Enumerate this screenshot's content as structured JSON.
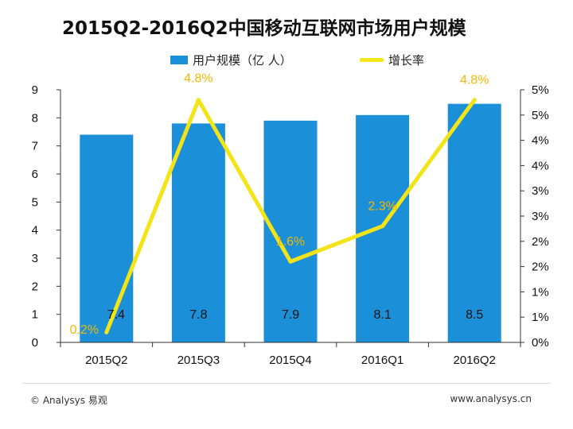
{
  "colors": {
    "bar": "#1B8FD8",
    "line": "#F2E416",
    "rate_label": "#F5B800",
    "axis_text": "#111111",
    "axis_line": "#333333",
    "bar_label": "#111111"
  },
  "chart_data": {
    "type": "bar",
    "title": "2015Q2-2016Q2中国移动互联网市场用户规模",
    "categories": [
      "2015Q2",
      "2015Q3",
      "2015Q4",
      "2016Q1",
      "2016Q2"
    ],
    "series": [
      {
        "name": "用户规模（亿 人）",
        "type": "bar",
        "axis": "left",
        "values": [
          7.4,
          7.8,
          7.9,
          8.1,
          8.5
        ],
        "labels": [
          "7.4",
          "7.8",
          "7.9",
          "8.1",
          "8.5"
        ]
      },
      {
        "name": "增长率",
        "type": "line",
        "axis": "right",
        "values": [
          0.2,
          4.8,
          1.6,
          2.3,
          4.8
        ],
        "labels": [
          "0.2%",
          "4.8%",
          "1.6%",
          "2.3%",
          "4.8%"
        ]
      }
    ],
    "left_axis": {
      "ylim": [
        0,
        9
      ],
      "ticks": [
        "0",
        "1",
        "2",
        "3",
        "4",
        "5",
        "6",
        "7",
        "8",
        "9"
      ]
    },
    "right_axis": {
      "ylim": [
        0,
        5
      ],
      "ticks": [
        "0%",
        "1%",
        "1%",
        "2%",
        "2%",
        "3%",
        "3%",
        "4%",
        "4%",
        "5%",
        "5%"
      ]
    },
    "grid": false,
    "legend": "top"
  },
  "footer": {
    "source": "© Analysys 易观",
    "url": "www.analysys.cn"
  }
}
